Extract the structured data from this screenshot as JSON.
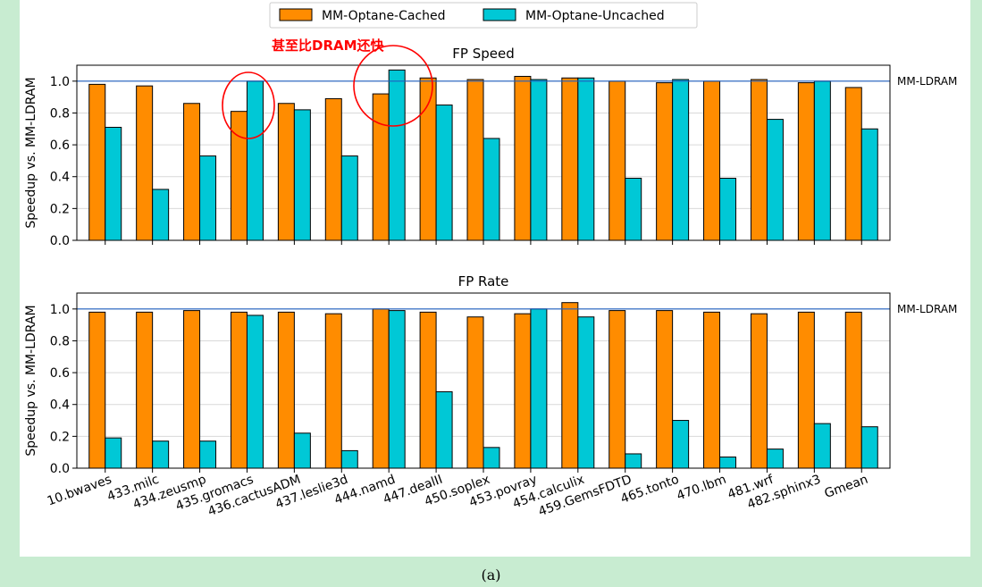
{
  "legend": {
    "items": [
      {
        "name": "MM-Optane-Cached",
        "color": "#ff8c00"
      },
      {
        "name": "MM-Optane-Uncached",
        "color": "#00c8d6"
      }
    ]
  },
  "annotation": {
    "text": "甚至比DRAM还快",
    "color": "#ff0000"
  },
  "reference_line": {
    "label": "MM-LDRAM",
    "value": 1.0,
    "color": "#1f5fbf"
  },
  "caption": "(a)",
  "chart_data": [
    {
      "type": "bar",
      "title": "FP Speed",
      "ylabel": "Speedup vs. MM-LDRAM",
      "ylim": [
        0,
        1.1
      ],
      "yticks": [
        "0.0",
        "0.2",
        "0.4",
        "0.6",
        "0.8",
        "1.0"
      ],
      "grid": "horizontal",
      "categories": [
        "10.bwaves",
        "433.milc",
        "434.zeusmp",
        "435.gromacs",
        "436.cactusADM",
        "437.leslie3d",
        "444.namd",
        "447.dealII",
        "450.soplex",
        "453.povray",
        "454.calculix",
        "459.GemsFDTD",
        "465.tonto",
        "470.lbm",
        "481.wrf",
        "482.sphinx3",
        "Gmean"
      ],
      "series": [
        {
          "name": "MM-Optane-Cached",
          "values": [
            0.98,
            0.97,
            0.86,
            0.81,
            0.86,
            0.89,
            0.92,
            1.02,
            1.01,
            1.03,
            1.02,
            1.0,
            0.99,
            1.0,
            1.01,
            0.99,
            0.96
          ]
        },
        {
          "name": "MM-Optane-Uncached",
          "values": [
            0.71,
            0.32,
            0.53,
            1.0,
            0.82,
            0.53,
            1.07,
            0.85,
            0.64,
            1.01,
            1.02,
            0.39,
            1.01,
            0.39,
            0.76,
            1.0,
            0.7
          ]
        }
      ]
    },
    {
      "type": "bar",
      "title": "FP Rate",
      "ylabel": "Speedup vs. MM-LDRAM",
      "ylim": [
        0,
        1.1
      ],
      "yticks": [
        "0.0",
        "0.2",
        "0.4",
        "0.6",
        "0.8",
        "1.0"
      ],
      "grid": "horizontal",
      "categories": [
        "10.bwaves",
        "433.milc",
        "434.zeusmp",
        "435.gromacs",
        "436.cactusADM",
        "437.leslie3d",
        "444.namd",
        "447.dealII",
        "450.soplex",
        "453.povray",
        "454.calculix",
        "459.GemsFDTD",
        "465.tonto",
        "470.lbm",
        "481.wrf",
        "482.sphinx3",
        "Gmean"
      ],
      "series": [
        {
          "name": "MM-Optane-Cached",
          "values": [
            0.98,
            0.98,
            0.99,
            0.98,
            0.98,
            0.97,
            1.0,
            0.98,
            0.95,
            0.97,
            1.04,
            0.99,
            0.99,
            0.98,
            0.97,
            0.98,
            0.98
          ]
        },
        {
          "name": "MM-Optane-Uncached",
          "values": [
            0.19,
            0.17,
            0.17,
            0.96,
            0.22,
            0.11,
            0.99,
            0.48,
            0.13,
            1.0,
            0.95,
            0.09,
            0.3,
            0.07,
            0.12,
            0.28,
            0.26
          ]
        }
      ]
    }
  ]
}
